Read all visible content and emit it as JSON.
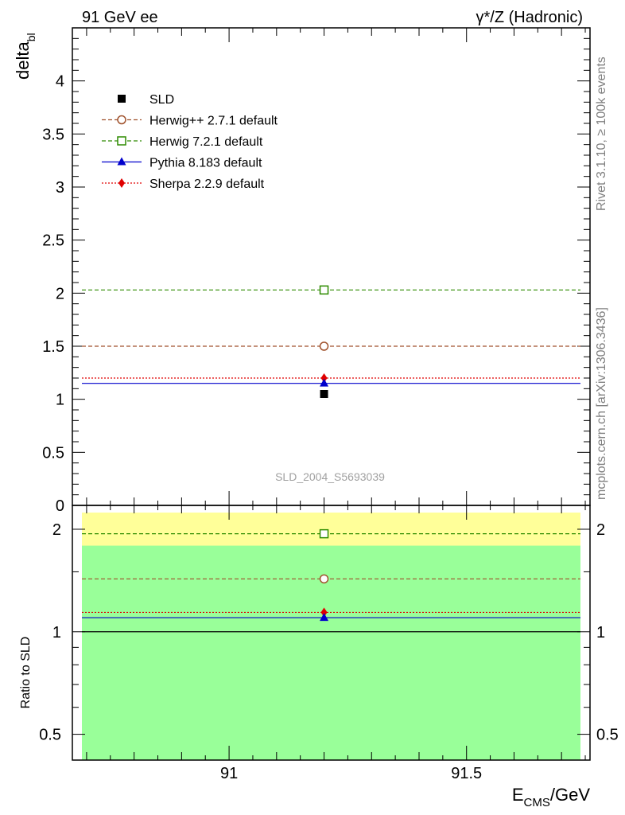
{
  "header": {
    "left_title": "91 GeV ee",
    "right_title": "γ*/Z (Hadronic)"
  },
  "side_labels": {
    "rivet": "Rivet 3.1.10, ≥ 100k events",
    "mcplots": "mcplots.cern.ch [arXiv:1306.3436]"
  },
  "watermark": "SLD_2004_S5693039",
  "colors": {
    "sld": "#000000",
    "herwigpp": "#a0522d",
    "herwig7": "#2e8b00",
    "pythia": "#0000cc",
    "sherpa": "#e00000",
    "band_yellow": "#ffff99",
    "band_green": "#99ff99"
  },
  "chart_data": [
    {
      "type": "scatter",
      "name": "main",
      "ylabel_base": "delta",
      "ylabel_sub": "bl",
      "xlim": [
        90.67,
        91.76
      ],
      "ylim": [
        0,
        4.5
      ],
      "yticks": [
        0,
        0.5,
        1,
        1.5,
        2,
        2.5,
        3,
        3.5,
        4
      ],
      "ytick_labels": [
        "0",
        "0.5",
        "1",
        "1.5",
        "2",
        "2.5",
        "3",
        "3.5",
        "4"
      ],
      "legend_position": "top-left",
      "x_point": 91.2,
      "series": [
        {
          "name": "SLD",
          "label": "SLD",
          "value": 1.05,
          "marker": "filled-square",
          "color_key": "sld",
          "line": "none"
        },
        {
          "name": "Herwig++",
          "label": "Herwig++ 2.7.1 default",
          "value": 1.5,
          "marker": "open-circle",
          "color_key": "herwigpp",
          "line": "dashed"
        },
        {
          "name": "Herwig7",
          "label": "Herwig 7.2.1 default",
          "value": 2.03,
          "marker": "open-square",
          "color_key": "herwig7",
          "line": "dashed"
        },
        {
          "name": "Pythia",
          "label": "Pythia 8.183 default",
          "value": 1.15,
          "marker": "filled-triangle",
          "color_key": "pythia",
          "line": "solid"
        },
        {
          "name": "Sherpa",
          "label": "Sherpa 2.2.9 default",
          "value": 1.2,
          "marker": "filled-diamond",
          "color_key": "sherpa",
          "line": "dotted"
        }
      ]
    },
    {
      "type": "scatter",
      "name": "ratio",
      "ylabel": "Ratio to SLD",
      "xlabel_base": "E",
      "xlabel_sub": "CMS",
      "xlabel_rest": "/GeV",
      "yscale": "log",
      "ylim": [
        0.42,
        2.35
      ],
      "yticks": [
        0.5,
        1,
        2
      ],
      "ytick_labels": [
        "0.5",
        "1",
        "2"
      ],
      "xticks": [
        91,
        91.5
      ],
      "xtick_labels": [
        "91",
        "91.5"
      ],
      "bands": [
        {
          "name": "yellow",
          "lower": 0.42,
          "upper": 2.35,
          "color_key": "band_yellow"
        },
        {
          "name": "green",
          "lower": 0.42,
          "upper": 1.79,
          "color_key": "band_green"
        }
      ],
      "reference": 1,
      "series": [
        {
          "name": "Herwig7",
          "value": 1.94,
          "marker": "open-square",
          "color_key": "herwig7",
          "line": "dashed"
        },
        {
          "name": "Herwig++",
          "value": 1.43,
          "marker": "open-circle",
          "color_key": "herwigpp",
          "line": "dashed"
        },
        {
          "name": "Sherpa",
          "value": 1.14,
          "marker": "filled-diamond",
          "color_key": "sherpa",
          "line": "dotted"
        },
        {
          "name": "Pythia",
          "value": 1.1,
          "marker": "filled-triangle",
          "color_key": "pythia",
          "line": "solid"
        }
      ]
    }
  ]
}
